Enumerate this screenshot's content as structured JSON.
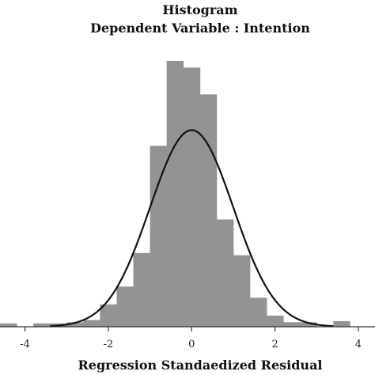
{
  "chart_data": {
    "type": "bar",
    "title": "Histogram",
    "subtitle": "Dependent Variable : Intention",
    "xlabel": "Regression Standaedized Residual",
    "ylabel": "",
    "xlim": [
      -4.6,
      4.4
    ],
    "ylim": [
      0,
      125
    ],
    "x_ticks": [
      -4,
      -2,
      0,
      2,
      4
    ],
    "grid": false,
    "legend": "none",
    "bar_width": 0.4,
    "bins": [
      {
        "x0": -4.6,
        "x1": -4.2,
        "value": 1.5
      },
      {
        "x0": -4.2,
        "x1": -3.8,
        "value": 0
      },
      {
        "x0": -3.8,
        "x1": -3.4,
        "value": 1.5
      },
      {
        "x0": -3.4,
        "x1": -3.0,
        "value": 1.5
      },
      {
        "x0": -3.0,
        "x1": -2.6,
        "value": 2
      },
      {
        "x0": -2.6,
        "x1": -2.2,
        "value": 3
      },
      {
        "x0": -2.2,
        "x1": -1.8,
        "value": 10
      },
      {
        "x0": -1.8,
        "x1": -1.4,
        "value": 18
      },
      {
        "x0": -1.4,
        "x1": -1.0,
        "value": 33
      },
      {
        "x0": -1.0,
        "x1": -0.6,
        "value": 81
      },
      {
        "x0": -0.6,
        "x1": -0.2,
        "value": 119
      },
      {
        "x0": -0.2,
        "x1": 0.2,
        "value": 116
      },
      {
        "x0": 0.2,
        "x1": 0.6,
        "value": 104
      },
      {
        "x0": 0.6,
        "x1": 1.0,
        "value": 48
      },
      {
        "x0": 1.0,
        "x1": 1.4,
        "value": 32
      },
      {
        "x0": 1.4,
        "x1": 1.8,
        "value": 13
      },
      {
        "x0": 1.8,
        "x1": 2.2,
        "value": 5
      },
      {
        "x0": 2.2,
        "x1": 2.6,
        "value": 2
      },
      {
        "x0": 2.6,
        "x1": 3.0,
        "value": 2
      },
      {
        "x0": 3.0,
        "x1": 3.4,
        "value": 0
      },
      {
        "x0": 3.4,
        "x1": 3.8,
        "value": 2.5
      }
    ],
    "normal_curve": {
      "mean": 0,
      "sd": 1,
      "peak": 88
    },
    "colors": {
      "bar": "#939393",
      "curve": "#111111",
      "axis": "#333333"
    }
  }
}
